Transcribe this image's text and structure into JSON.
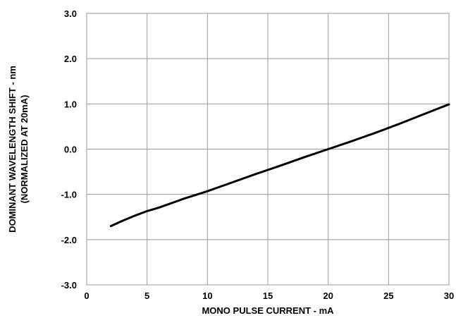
{
  "chart_data": {
    "type": "line",
    "title": "",
    "xlabel": "MONO PULSE CURRENT - mA",
    "ylabel_line1": "DOMINANT WAVELENGTH SHIFT - nm",
    "ylabel_line2": "(NORMALIZED AT 20mA)",
    "xlim": [
      0,
      30
    ],
    "ylim": [
      -3.0,
      3.0
    ],
    "x_ticks": [
      0,
      5,
      10,
      15,
      20,
      25,
      30
    ],
    "x_tick_labels": [
      "0",
      "5",
      "10",
      "15",
      "20",
      "25",
      "30"
    ],
    "y_ticks": [
      3.0,
      2.0,
      1.0,
      0.0,
      -1.0,
      -2.0,
      -3.0
    ],
    "y_tick_labels": [
      "3.0",
      "2.0",
      "1.0",
      "0.0",
      "-1.0",
      "-2.0",
      "-3.0"
    ],
    "grid": true,
    "legend": "none",
    "line_color": "#000000",
    "grid_color": "#999999",
    "series": [
      {
        "x": [
          2,
          3,
          4,
          5,
          6,
          8,
          10,
          12,
          14,
          16,
          18,
          20,
          22,
          24,
          26,
          28,
          30
        ],
        "y": [
          -1.7,
          -1.58,
          -1.47,
          -1.37,
          -1.29,
          -1.1,
          -0.93,
          -0.74,
          -0.55,
          -0.37,
          -0.18,
          0.0,
          0.18,
          0.37,
          0.57,
          0.78,
          0.99
        ]
      }
    ]
  }
}
